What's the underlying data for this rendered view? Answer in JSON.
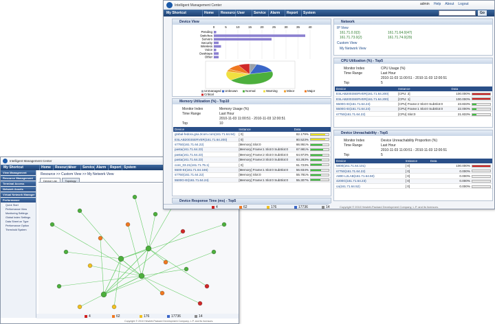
{
  "main_window": {
    "header": {
      "title": "Intelligent Management Center",
      "user": "admin",
      "links": [
        "Help",
        "About",
        "Logout"
      ],
      "search_button": "Go"
    },
    "nav": {
      "shortcut": "My Shortcut",
      "items": [
        "Home",
        "Resource",
        "User",
        "Service",
        "Alarm",
        "Report",
        "System"
      ]
    },
    "device_view": {
      "title": "Device View",
      "bar_chart": {
        "type": "bar",
        "categories": [
          "Pending",
          "Switches",
          "Servers",
          "Security",
          "Wireless",
          "Voice",
          "Desktops",
          "Other"
        ],
        "values": [
          1,
          38,
          24,
          2,
          3,
          1,
          2,
          2
        ],
        "xlim": [
          0,
          40
        ],
        "xticks": [
          0,
          5,
          10,
          15,
          20,
          25,
          30,
          35,
          40
        ],
        "color": "#8a7fd0"
      },
      "pie_chart": {
        "type": "pie",
        "categories": [
          "Unmanaged",
          "Unknown",
          "Normal",
          "Warning",
          "Minor",
          "Major",
          "Critical"
        ],
        "values": [
          5,
          16,
          44,
          14,
          4,
          9,
          8
        ],
        "colors": [
          "#9aa0a8",
          "#3a66c8",
          "#4caf3c",
          "#f0e040",
          "#f0a030",
          "#f07820",
          "#d02828"
        ]
      }
    },
    "memory": {
      "title": "Memory Utilization (%) - Top10",
      "fields": [
        {
          "label": "Monitor Index",
          "value": "Memory Usage (%)"
        },
        {
          "label": "Time Range",
          "value": "Last Hour"
        },
        {
          "label": "Top",
          "value": 10
        }
      ],
      "period": "2010-11-03 11:00:51 - 2010-11-03 12:00:51",
      "columns": [
        "Device",
        "Instance",
        "Data"
      ],
      "rows": [
        {
          "device": "global-fedora.gsa.3com.com(161.71.64.94)",
          "instance": "[ 0]",
          "value": 82.179,
          "label": "82.179%",
          "color": "#e8e020"
        },
        {
          "device": "ESLAB2003SERVER(161.71.64.200)",
          "instance": "[ 0]",
          "value": 80.523,
          "label": "80.523%",
          "color": "#e8e020"
        },
        {
          "device": "s7750(161.71.64.22)",
          "instance": "[Memory] Slot:0",
          "value": 66.951,
          "label": "66.951%",
          "color": "#40c040"
        },
        {
          "device": "pasta(161.71.64.23)",
          "instance": "[Memory] Frame:1 Slot:0 SubSlot:0",
          "value": 67.981,
          "label": "67.981%",
          "color": "#40c040"
        },
        {
          "device": "pasta(161.71.64.23)",
          "instance": "[Memory] Frame:2 Slot:0 SubSlot:0",
          "value": 64.973,
          "label": "64.973%",
          "color": "#40c040"
        },
        {
          "device": "pasta(161.71.64.23)",
          "instance": "[Memory] Frame:3 Slot:0 SubSlot:0",
          "value": 63.283,
          "label": "63.283%",
          "color": "#40c040"
        },
        {
          "device": "core_03.21(161.71.75.1)",
          "instance": "[ 0]",
          "value": 61.723,
          "label": "61.723%",
          "color": "#40c040"
        },
        {
          "device": "5500-EI(161.71.64.166)",
          "instance": "[Memory] Frame:1 Slot:0 SubSlot:0",
          "value": 56.934,
          "label": "56.934%",
          "color": "#40c040"
        },
        {
          "device": "s7750(161.71.64.22)",
          "instance": "[Memory] Slot:0",
          "value": 55.781,
          "label": "55.781%",
          "color": "#40c040"
        },
        {
          "device": "5500G-EI(161.71.64.24)",
          "instance": "[Memory] Frame:1 Slot:0 SubSlot:0",
          "value": 55.307,
          "label": "55.307%",
          "color": "#40c040"
        }
      ]
    },
    "response_time": {
      "title": "Device Response Time (ms) - Top5"
    },
    "network": {
      "title": "Network",
      "ip_view": "IP View",
      "subnets": [
        "161.71.0.0(3)",
        "161.71.64.0(47)",
        "161.71.73.0(2)",
        "161.71.74.0(29)"
      ],
      "custom_view": "Custom View",
      "my_view": "My Network View"
    },
    "cpu": {
      "title": "CPU Utilization (%) - Top5",
      "fields": [
        {
          "label": "Monitor Index",
          "value": "CPU Usage (%)"
        },
        {
          "label": "Time Range",
          "value": "Last Hour"
        },
        {
          "label": "Top",
          "value": 5
        }
      ],
      "period": "2010-11-03 11:00:51 - 2010-11-03 12:00:51",
      "columns": [
        "Device",
        "Instance",
        "Data"
      ],
      "rows": [
        {
          "device": "ESLAB2003SERVER(161.71.64.200)",
          "instance": "[CPU: 2]",
          "value": 100,
          "label": "100.000%",
          "color": "#d02020"
        },
        {
          "device": "ESLAB2003SERVER(161.71.64.200)",
          "instance": "[CPU: 1]",
          "value": 100,
          "label": "100.000%",
          "color": "#d02020"
        },
        {
          "device": "5500G-EI(161.71.64.24)",
          "instance": "[CPU] Frame:2 Slot:0 SubSlot:0",
          "value": 23.833,
          "label": "23.833%",
          "color": "#40c040"
        },
        {
          "device": "5500G-EI(161.71.64.24)",
          "instance": "[CPU] Frame:1 Slot:0 SubSlot:0",
          "value": 22,
          "label": "22.000%",
          "color": "#40c040"
        },
        {
          "device": "s7750(161.71.64.22)",
          "instance": "[CPU] Slot:0",
          "value": 21.833,
          "label": "21.833%",
          "color": "#40c040"
        }
      ]
    },
    "unreachability": {
      "title": "Device Unreachability - Top5",
      "fields": [
        {
          "label": "Monitor Index",
          "value": "Device Unreachability Proportion (%)"
        },
        {
          "label": "Time Range",
          "value": "Last Hour"
        },
        {
          "label": "Top",
          "value": 5
        }
      ],
      "period": "2010-11-03 11:00:51 - 2010-11-03 12:00:51",
      "columns": [
        "Device",
        "Instance",
        "Data"
      ],
      "rows": [
        {
          "device": "5800(161.71.64.101)",
          "instance": "[ 0]",
          "value": 100,
          "label": "100.000%",
          "color": "#d02020"
        },
        {
          "device": "s7750(161.71.64.22)",
          "instance": "[ 0]",
          "value": 0,
          "label": "0.000%",
          "color": "#40c040"
        },
        {
          "device": "A800 L2LAB(161.71.64.50)",
          "instance": "[ 0]",
          "value": 0,
          "label": "0.000%",
          "color": "#40c040"
        },
        {
          "device": "4200G(161.71.64.23)",
          "instance": "[ 0]",
          "value": 0,
          "label": "0.000%",
          "color": "#40c040"
        },
        {
          "device": "ca(161.71.64.52)",
          "instance": "[ 0]",
          "value": 0,
          "label": "0.000%",
          "color": "#40c040"
        }
      ]
    },
    "status_bar": [
      4,
      62,
      176,
      17736,
      14
    ],
    "footer": "Copyright © 2010 Hewlett-Packard Development Company, L.P. and its licensors."
  },
  "topology_window": {
    "header": {
      "title": "Intelligent Management Center"
    },
    "nav": {
      "shortcut": "My Shortcut",
      "items": [
        "Home",
        "Resource",
        "User",
        "Service",
        "Alarm",
        "Report",
        "System"
      ]
    },
    "menu": [
      "View Management",
      "Resource Management",
      "Terminal Access",
      "Network Assets",
      "Virtual Network Manager",
      "Performance Management"
    ],
    "submenu": [
      "Quick Start",
      "Performance View",
      "Monitoring Settings",
      "Global Index Settings",
      "Data Sheet on Type",
      "Performance Option",
      "Threshold System"
    ],
    "breadcrumb": "Resource >> Custom View >> My Network View",
    "tabs": [
      "Device List",
      "Topology"
    ],
    "status_bar": [
      4,
      62,
      176,
      17736,
      14
    ],
    "footer": "Copyright © 2010 Hewlett-Packard Development Company, L.P. and its licensors."
  }
}
